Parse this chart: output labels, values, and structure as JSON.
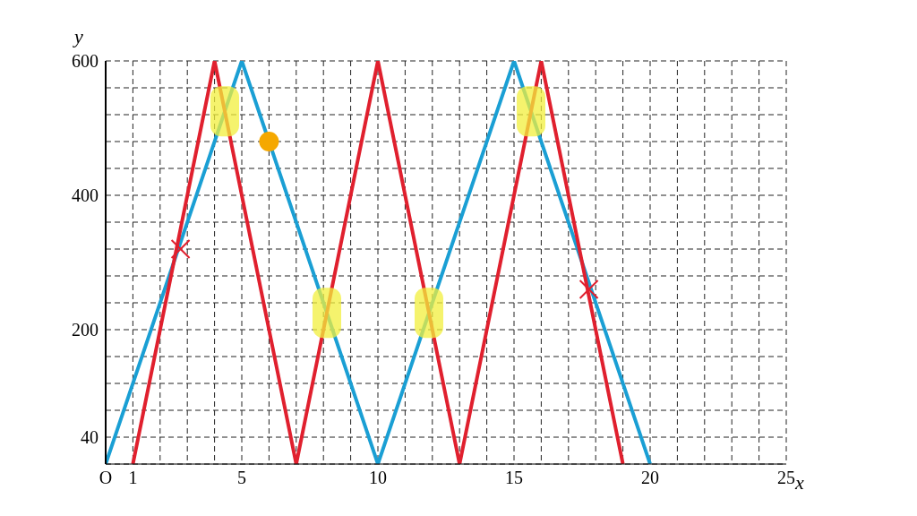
{
  "chart_data": {
    "type": "line",
    "xlabel": "x",
    "ylabel": "y",
    "xlim": [
      0,
      25
    ],
    "ylim": [
      0,
      600
    ],
    "xticks": [
      {
        "value": 0,
        "label": "O"
      },
      1,
      {
        "value": 2,
        "label": null
      },
      {
        "value": 3,
        "label": null
      },
      {
        "value": 4,
        "label": null
      },
      5,
      {
        "value": 6,
        "label": null
      },
      {
        "value": 7,
        "label": null
      },
      {
        "value": 8,
        "label": null
      },
      {
        "value": 9,
        "label": null
      },
      10,
      {
        "value": 11,
        "label": null
      },
      {
        "value": 12,
        "label": null
      },
      {
        "value": 13,
        "label": null
      },
      {
        "value": 14,
        "label": null
      },
      15,
      {
        "value": 16,
        "label": null
      },
      {
        "value": 17,
        "label": null
      },
      {
        "value": 18,
        "label": null
      },
      {
        "value": 19,
        "label": null
      },
      20,
      {
        "value": 21,
        "label": null
      },
      {
        "value": 22,
        "label": null
      },
      {
        "value": 23,
        "label": null
      },
      {
        "value": 24,
        "label": null
      },
      25
    ],
    "yticks": [
      40,
      {
        "value": 80,
        "label": null
      },
      {
        "value": 120,
        "label": null
      },
      {
        "value": 160,
        "label": null
      },
      200,
      {
        "value": 240,
        "label": null
      },
      {
        "value": 280,
        "label": null
      },
      {
        "value": 320,
        "label": null
      },
      {
        "value": 360,
        "label": null
      },
      400,
      {
        "value": 440,
        "label": null
      },
      {
        "value": 480,
        "label": null
      },
      {
        "value": 520,
        "label": null
      },
      {
        "value": 560,
        "label": null
      },
      600
    ],
    "grid": true,
    "marker": "none",
    "line_style": "solid",
    "series": [
      {
        "color": "#1a9fd4",
        "x": [
          0,
          5,
          10,
          15,
          20
        ],
        "values": [
          0,
          600,
          0,
          600,
          0
        ]
      },
      {
        "color": "#e0202e",
        "x": [
          1,
          4,
          7,
          10,
          13,
          16,
          19
        ],
        "values": [
          0,
          600,
          0,
          600,
          0,
          600,
          0
        ]
      },
      {
        "type": "scatter",
        "marker": "cross",
        "color": "#e0202e",
        "x": [
          2.75,
          17.75
        ],
        "values": [
          320,
          260
        ]
      },
      {
        "type": "scatter",
        "marker": "circle",
        "color": "#f5a800",
        "x": [
          6
        ],
        "values": [
          480
        ]
      }
    ]
  }
}
